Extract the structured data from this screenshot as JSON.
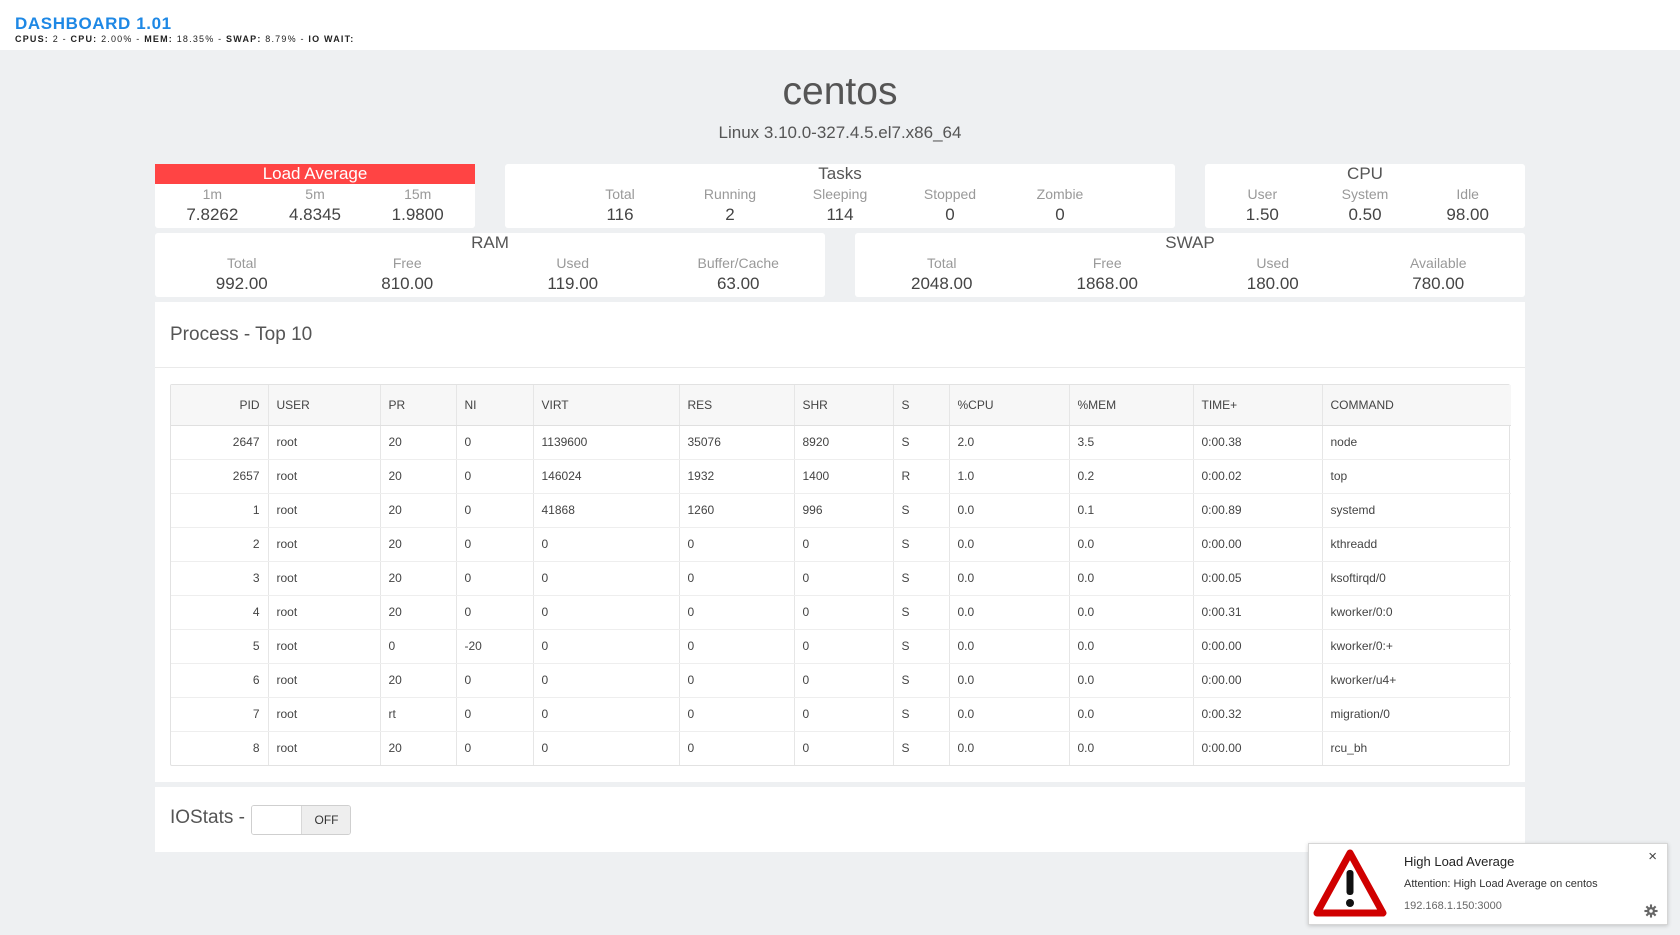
{
  "header": {
    "title": "DASHBOARD 1.01",
    "stats": {
      "cpus_label": "CPUS:",
      "cpus": "2",
      "cpu_label": "CPU:",
      "cpu": "2.00%",
      "mem_label": "MEM:",
      "mem": "18.35%",
      "swap_label": "SWAP:",
      "swap": "8.79%",
      "iowait_label": "IO WAIT:"
    }
  },
  "host": {
    "name": "centos",
    "kernel": "Linux 3.10.0-327.4.5.el7.x86_64"
  },
  "load_average": {
    "title": "Load Average",
    "alert_color": "#ff4444",
    "items": [
      {
        "label": "1m",
        "value": "7.8262"
      },
      {
        "label": "5m",
        "value": "4.8345"
      },
      {
        "label": "15m",
        "value": "1.9800"
      }
    ]
  },
  "tasks": {
    "title": "Tasks",
    "items": [
      {
        "label": "Total",
        "value": "116"
      },
      {
        "label": "Running",
        "value": "2"
      },
      {
        "label": "Sleeping",
        "value": "114"
      },
      {
        "label": "Stopped",
        "value": "0"
      },
      {
        "label": "Zombie",
        "value": "0"
      }
    ]
  },
  "cpu": {
    "title": "CPU",
    "items": [
      {
        "label": "User",
        "value": "1.50"
      },
      {
        "label": "System",
        "value": "0.50"
      },
      {
        "label": "Idle",
        "value": "98.00"
      }
    ]
  },
  "ram": {
    "title": "RAM",
    "items": [
      {
        "label": "Total",
        "value": "992.00"
      },
      {
        "label": "Free",
        "value": "810.00"
      },
      {
        "label": "Used",
        "value": "119.00"
      },
      {
        "label": "Buffer/Cache",
        "value": "63.00"
      }
    ]
  },
  "swap": {
    "title": "SWAP",
    "items": [
      {
        "label": "Total",
        "value": "2048.00"
      },
      {
        "label": "Free",
        "value": "1868.00"
      },
      {
        "label": "Used",
        "value": "180.00"
      },
      {
        "label": "Available",
        "value": "780.00"
      }
    ]
  },
  "process": {
    "title": "Process - Top 10",
    "columns": [
      "PID",
      "USER",
      "PR",
      "NI",
      "VIRT",
      "RES",
      "SHR",
      "S",
      "%CPU",
      "%MEM",
      "TIME+",
      "COMMAND"
    ],
    "rows": [
      [
        "2647",
        "root",
        "20",
        "0",
        "1139600",
        "35076",
        "8920",
        "S",
        "2.0",
        "3.5",
        "0:00.38",
        "node"
      ],
      [
        "2657",
        "root",
        "20",
        "0",
        "146024",
        "1932",
        "1400",
        "R",
        "1.0",
        "0.2",
        "0:00.02",
        "top"
      ],
      [
        "1",
        "root",
        "20",
        "0",
        "41868",
        "1260",
        "996",
        "S",
        "0.0",
        "0.1",
        "0:00.89",
        "systemd"
      ],
      [
        "2",
        "root",
        "20",
        "0",
        "0",
        "0",
        "0",
        "S",
        "0.0",
        "0.0",
        "0:00.00",
        "kthreadd"
      ],
      [
        "3",
        "root",
        "20",
        "0",
        "0",
        "0",
        "0",
        "S",
        "0.0",
        "0.0",
        "0:00.05",
        "ksoftirqd/0"
      ],
      [
        "4",
        "root",
        "20",
        "0",
        "0",
        "0",
        "0",
        "S",
        "0.0",
        "0.0",
        "0:00.31",
        "kworker/0:0"
      ],
      [
        "5",
        "root",
        "0",
        "-20",
        "0",
        "0",
        "0",
        "S",
        "0.0",
        "0.0",
        "0:00.00",
        "kworker/0:+"
      ],
      [
        "6",
        "root",
        "20",
        "0",
        "0",
        "0",
        "0",
        "S",
        "0.0",
        "0.0",
        "0:00.00",
        "kworker/u4+"
      ],
      [
        "7",
        "root",
        "rt",
        "0",
        "0",
        "0",
        "0",
        "S",
        "0.0",
        "0.0",
        "0:00.32",
        "migration/0"
      ],
      [
        "8",
        "root",
        "20",
        "0",
        "0",
        "0",
        "0",
        "S",
        "0.0",
        "0.0",
        "0:00.00",
        "rcu_bh"
      ]
    ]
  },
  "iostats": {
    "title": "IOStats -",
    "toggle_state": "OFF"
  },
  "notification": {
    "title": "High Load Average",
    "message": "Attention: High Load Average on centos",
    "source": "192.168.1.150:3000",
    "icon": "warning-triangle-icon",
    "close_glyph": "×"
  }
}
